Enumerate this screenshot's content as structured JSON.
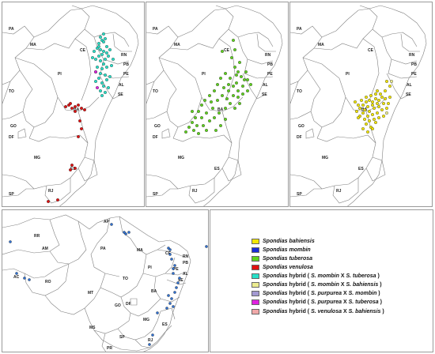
{
  "colors": {
    "bahiensis": "#f2e600",
    "mombin": "#1a2bd9",
    "tuberosa": "#5fd21e",
    "venulosa": "#e01010",
    "hyb_mombin_tuberosa": "#27e0c8",
    "hyb_mombin_bahiensis": "#ecec90",
    "hyb_purpurea_mombin": "#a39ad2",
    "hyb_purpurea_tuberosa": "#e020e0",
    "hyb_venulosa_bahiensis": "#f0a8a8",
    "mombin_map_dot": "#2e6fd0"
  },
  "panels": {
    "p1": {
      "labels": [
        "PA",
        "MA",
        "CE",
        "RN",
        "PB",
        "PE",
        "PI",
        "AL",
        "SE",
        "TO",
        "BA",
        "GO",
        "DF",
        "MG",
        "ES",
        "SP",
        "RJ"
      ]
    },
    "p2": {
      "labels": [
        "PA",
        "MA",
        "CE",
        "RN",
        "PB",
        "PE",
        "PI",
        "AL",
        "SE",
        "TO",
        "BA",
        "GO",
        "DF",
        "MG",
        "ES",
        "SP",
        "RJ"
      ]
    },
    "p3": {
      "labels": [
        "PA",
        "MA",
        "CE",
        "RN",
        "PB",
        "PE",
        "PI",
        "AL",
        "SE",
        "TO",
        "BA",
        "GO",
        "DF",
        "MG",
        "ES",
        "SP",
        "RJ"
      ]
    },
    "p4": {
      "labels": [
        "RR",
        "AP",
        "AM",
        "PA",
        "MA",
        "CE",
        "RN",
        "PB",
        "PE",
        "PI",
        "AL",
        "SE",
        "AC",
        "RO",
        "TO",
        "MT",
        "BA",
        "GO",
        "DF",
        "MG",
        "MS",
        "ES",
        "SP",
        "RJ",
        "PR"
      ]
    }
  },
  "legend": [
    {
      "genus": "Spondias",
      "epithet": "bahiensis",
      "hybrid": "",
      "colorKey": "bahiensis"
    },
    {
      "genus": "Spondias",
      "epithet": "mombin",
      "hybrid": "",
      "colorKey": "mombin"
    },
    {
      "genus": "Spondias",
      "epithet": "tuberosa",
      "hybrid": "",
      "colorKey": "tuberosa"
    },
    {
      "genus": "Spondias",
      "epithet": "venulosa",
      "hybrid": "",
      "colorKey": "venulosa"
    },
    {
      "genus": "Spondias",
      "epithet": "",
      "hybrid": "hybrid",
      "p1": "S. mombin",
      "p2": "S. tuberosa",
      "colorKey": "hyb_mombin_tuberosa"
    },
    {
      "genus": "Spondias",
      "epithet": "",
      "hybrid": "hybrid",
      "p1": "S. mombin",
      "p2": "S. bahiensis",
      "colorKey": "hyb_mombin_bahiensis"
    },
    {
      "genus": "Spondias",
      "epithet": "",
      "hybrid": "hybrid",
      "p1": "S. purpurea",
      "p2": "S. mombin",
      "colorKey": "hyb_purpurea_mombin"
    },
    {
      "genus": "Spondias",
      "epithet": "",
      "hybrid": "hybrid",
      "p1": "S. purpurea",
      "p2": "S. tuberosa",
      "colorKey": "hyb_purpurea_tuberosa"
    },
    {
      "genus": "Spondias",
      "epithet": "",
      "hybrid": "hybrid",
      "p1": "S. venulosa",
      "p2": "S. bahiensis",
      "colorKey": "hyb_venulosa_bahiensis"
    }
  ]
}
